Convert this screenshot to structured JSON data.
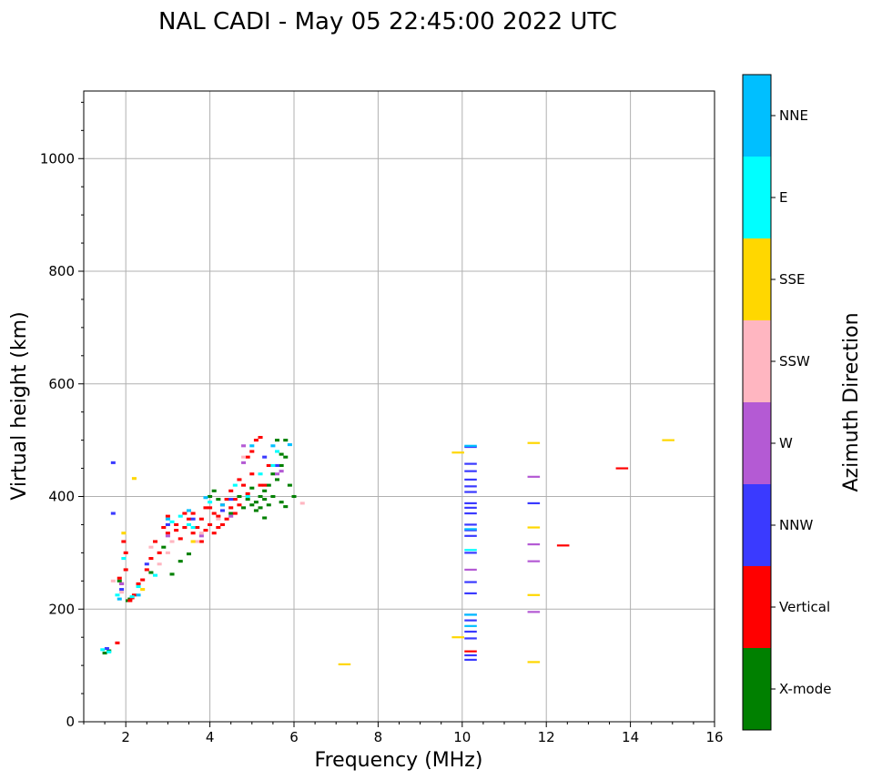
{
  "chart_data": {
    "type": "scatter",
    "title": "NAL CADI - May 05 22:45:00 2022 UTC",
    "xlabel": "Frequency (MHz)",
    "ylabel": "Virtual height (km)",
    "xlim": [
      1,
      16
    ],
    "ylim": [
      0,
      1120
    ],
    "xticks": [
      2,
      4,
      6,
      8,
      10,
      12,
      14,
      16
    ],
    "yticks": [
      0,
      200,
      400,
      600,
      800,
      1000
    ],
    "grid": true,
    "colorbar": {
      "title": "Azimuth Direction",
      "categories": [
        {
          "name": "X-mode",
          "color": "#008000"
        },
        {
          "name": "Vertical",
          "color": "#ff0000"
        },
        {
          "name": "NNW",
          "color": "#3a3aff"
        },
        {
          "name": "W",
          "color": "#b45ad4"
        },
        {
          "name": "SSW",
          "color": "#ffb6c1"
        },
        {
          "name": "SSE",
          "color": "#ffd700"
        },
        {
          "name": "E",
          "color": "#00ffff"
        },
        {
          "name": "NNE",
          "color": "#00bfff"
        }
      ]
    },
    "series": [
      {
        "name": "X-mode",
        "points": [
          [
            1.5,
            122
          ],
          [
            1.6,
            126
          ],
          [
            1.85,
            250
          ],
          [
            2.05,
            215
          ],
          [
            2.1,
            218
          ],
          [
            2.6,
            265
          ],
          [
            2.9,
            310
          ],
          [
            3.1,
            262
          ],
          [
            3.3,
            285
          ],
          [
            3.5,
            298
          ],
          [
            4.0,
            400
          ],
          [
            4.1,
            410
          ],
          [
            4.2,
            395
          ],
          [
            4.5,
            370
          ],
          [
            4.7,
            400
          ],
          [
            4.8,
            380
          ],
          [
            4.9,
            395
          ],
          [
            5.0,
            385
          ],
          [
            5.1,
            375
          ],
          [
            5.1,
            390
          ],
          [
            5.2,
            400
          ],
          [
            5.2,
            380
          ],
          [
            5.3,
            395
          ],
          [
            5.3,
            410
          ],
          [
            5.4,
            385
          ],
          [
            5.4,
            420
          ],
          [
            5.5,
            400
          ],
          [
            5.5,
            440
          ],
          [
            5.6,
            430
          ],
          [
            5.6,
            500
          ],
          [
            5.7,
            475
          ],
          [
            5.7,
            390
          ],
          [
            5.8,
            470
          ],
          [
            5.8,
            500
          ],
          [
            5.9,
            420
          ],
          [
            6.0,
            400
          ],
          [
            5.3,
            362
          ],
          [
            5.8,
            382
          ],
          [
            5.0,
            415
          ],
          [
            5.7,
            455
          ]
        ]
      },
      {
        "name": "Vertical",
        "points": [
          [
            1.8,
            140
          ],
          [
            1.85,
            255
          ],
          [
            1.9,
            245
          ],
          [
            1.95,
            320
          ],
          [
            2.0,
            300
          ],
          [
            2.0,
            270
          ],
          [
            2.1,
            215
          ],
          [
            2.15,
            220
          ],
          [
            2.2,
            225
          ],
          [
            2.3,
            245
          ],
          [
            2.4,
            252
          ],
          [
            2.5,
            270
          ],
          [
            2.6,
            290
          ],
          [
            2.7,
            320
          ],
          [
            2.8,
            300
          ],
          [
            2.9,
            345
          ],
          [
            3.0,
            335
          ],
          [
            3.0,
            365
          ],
          [
            3.2,
            340
          ],
          [
            3.3,
            325
          ],
          [
            3.4,
            345
          ],
          [
            3.5,
            360
          ],
          [
            3.6,
            335
          ],
          [
            3.6,
            370
          ],
          [
            3.7,
            345
          ],
          [
            3.8,
            320
          ],
          [
            3.8,
            360
          ],
          [
            3.9,
            380
          ],
          [
            3.9,
            340
          ],
          [
            4.0,
            350
          ],
          [
            4.0,
            380
          ],
          [
            4.1,
            370
          ],
          [
            4.1,
            335
          ],
          [
            4.2,
            345
          ],
          [
            4.2,
            365
          ],
          [
            4.3,
            385
          ],
          [
            4.4,
            360
          ],
          [
            4.4,
            395
          ],
          [
            4.5,
            380
          ],
          [
            4.5,
            410
          ],
          [
            4.6,
            370
          ],
          [
            4.6,
            395
          ],
          [
            4.7,
            385
          ],
          [
            4.8,
            420
          ],
          [
            4.9,
            405
          ],
          [
            4.9,
            470
          ],
          [
            5.0,
            480
          ],
          [
            5.0,
            440
          ],
          [
            5.1,
            500
          ],
          [
            5.2,
            505
          ],
          [
            5.3,
            420
          ],
          [
            5.4,
            455
          ],
          [
            5.2,
            420
          ],
          [
            4.7,
            430
          ],
          [
            4.3,
            350
          ],
          [
            3.2,
            350
          ],
          [
            3.4,
            370
          ],
          [
            10.2,
            125
          ],
          [
            12.4,
            313
          ],
          [
            13.8,
            450
          ]
        ]
      },
      {
        "name": "NNW",
        "points": [
          [
            1.55,
            130
          ],
          [
            1.7,
            460
          ],
          [
            1.7,
            370
          ],
          [
            1.9,
            235
          ],
          [
            2.5,
            280
          ],
          [
            3.0,
            350
          ],
          [
            3.6,
            360
          ],
          [
            4.3,
            375
          ],
          [
            4.5,
            395
          ],
          [
            5.3,
            470
          ],
          [
            5.6,
            455
          ],
          [
            10.2,
            110
          ],
          [
            10.2,
            118
          ],
          [
            10.2,
            148
          ],
          [
            10.2,
            160
          ],
          [
            10.2,
            180
          ],
          [
            10.2,
            190
          ],
          [
            10.2,
            228
          ],
          [
            10.2,
            248
          ],
          [
            10.2,
            300
          ],
          [
            10.2,
            330
          ],
          [
            10.2,
            340
          ],
          [
            10.2,
            350
          ],
          [
            10.2,
            370
          ],
          [
            10.2,
            380
          ],
          [
            10.2,
            388
          ],
          [
            10.2,
            408
          ],
          [
            10.2,
            418
          ],
          [
            10.2,
            430
          ],
          [
            10.2,
            445
          ],
          [
            10.2,
            458
          ],
          [
            10.2,
            488
          ],
          [
            11.7,
            388
          ]
        ]
      },
      {
        "name": "W",
        "points": [
          [
            1.9,
            245
          ],
          [
            3.0,
            330
          ],
          [
            3.8,
            330
          ],
          [
            4.5,
            365
          ],
          [
            4.8,
            460
          ],
          [
            4.8,
            490
          ],
          [
            5.6,
            440
          ],
          [
            5.7,
            445
          ],
          [
            10.2,
            270
          ],
          [
            11.7,
            195
          ],
          [
            11.7,
            285
          ],
          [
            11.7,
            315
          ],
          [
            11.7,
            435
          ]
        ]
      },
      {
        "name": "SSW",
        "points": [
          [
            1.7,
            250
          ],
          [
            1.9,
            230
          ],
          [
            2.6,
            310
          ],
          [
            2.8,
            280
          ],
          [
            3.0,
            300
          ],
          [
            3.1,
            320
          ],
          [
            3.7,
            320
          ],
          [
            3.8,
            335
          ],
          [
            4.2,
            360
          ],
          [
            4.8,
            470
          ],
          [
            6.2,
            388
          ]
        ]
      },
      {
        "name": "SSE",
        "points": [
          [
            1.95,
            335
          ],
          [
            2.2,
            432
          ],
          [
            2.4,
            235
          ],
          [
            3.6,
            320
          ],
          [
            7.2,
            102
          ],
          [
            9.9,
            150
          ],
          [
            9.9,
            478
          ],
          [
            11.7,
            106
          ],
          [
            11.7,
            225
          ],
          [
            11.7,
            345
          ],
          [
            11.7,
            495
          ],
          [
            14.9,
            500
          ]
        ]
      },
      {
        "name": "E",
        "points": [
          [
            1.45,
            128
          ],
          [
            1.6,
            124
          ],
          [
            1.8,
            225
          ],
          [
            1.95,
            290
          ],
          [
            2.15,
            222
          ],
          [
            2.3,
            240
          ],
          [
            2.7,
            260
          ],
          [
            3.1,
            355
          ],
          [
            3.3,
            365
          ],
          [
            3.5,
            350
          ],
          [
            3.6,
            345
          ],
          [
            4.0,
            390
          ],
          [
            4.6,
            420
          ],
          [
            4.9,
            400
          ],
          [
            5.2,
            440
          ],
          [
            5.5,
            455
          ],
          [
            5.6,
            480
          ],
          [
            10.2,
            305
          ]
        ]
      },
      {
        "name": "NNE",
        "points": [
          [
            1.85,
            218
          ],
          [
            2.3,
            225
          ],
          [
            3.0,
            360
          ],
          [
            3.5,
            375
          ],
          [
            3.9,
            398
          ],
          [
            4.3,
            385
          ],
          [
            5.0,
            490
          ],
          [
            5.5,
            490
          ],
          [
            5.9,
            492
          ],
          [
            10.2,
            170
          ],
          [
            10.2,
            190
          ],
          [
            10.2,
            342
          ],
          [
            10.2,
            490
          ]
        ]
      }
    ]
  }
}
